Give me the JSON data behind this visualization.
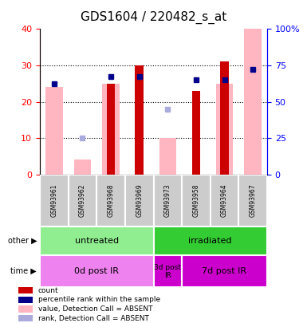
{
  "title": "GDS1604 / 220482_s_at",
  "samples": [
    "GSM93961",
    "GSM93962",
    "GSM93968",
    "GSM93969",
    "GSM93973",
    "GSM93958",
    "GSM93964",
    "GSM93967"
  ],
  "count_values": [
    0,
    0,
    25,
    30,
    0,
    23,
    31,
    0
  ],
  "pink_bar_values": [
    24,
    4,
    25,
    0,
    10,
    0,
    25,
    40
  ],
  "blue_square_values": [
    25,
    10,
    27,
    27,
    18,
    26,
    26,
    29
  ],
  "blue_square_absent": [
    false,
    true,
    false,
    false,
    true,
    false,
    false,
    false
  ],
  "ylim_left": [
    0,
    40
  ],
  "ylim_right": [
    0,
    100
  ],
  "yticks_left": [
    0,
    10,
    20,
    30,
    40
  ],
  "ytick_labels_right": [
    "0",
    "25",
    "50",
    "75",
    "100%"
  ],
  "other_label": "other",
  "time_label": "time",
  "groups_other": [
    {
      "label": "untreated",
      "start": 0,
      "end": 4,
      "color": "#90ee90"
    },
    {
      "label": "irradiated",
      "start": 4,
      "end": 8,
      "color": "#33cc33"
    }
  ],
  "groups_time": [
    {
      "label": "0d post IR",
      "start": 0,
      "end": 4,
      "color": "#ee82ee"
    },
    {
      "label": "3d post\nIR",
      "start": 4,
      "end": 5,
      "color": "#cc00cc"
    },
    {
      "label": "7d post IR",
      "start": 5,
      "end": 8,
      "color": "#cc00cc"
    }
  ],
  "legend_items": [
    {
      "label": "count",
      "color": "#cc0000"
    },
    {
      "label": "percentile rank within the sample",
      "color": "#00008b"
    },
    {
      "label": "value, Detection Call = ABSENT",
      "color": "#ffb6c1"
    },
    {
      "label": "rank, Detection Call = ABSENT",
      "color": "#aaaadd"
    }
  ],
  "bar_color_red": "#cc0000",
  "bar_color_pink": "#ffb6c1",
  "blue_sq_present": "#00008b",
  "blue_sq_absent": "#aaaadd",
  "title_fontsize": 11,
  "tick_fontsize": 8
}
